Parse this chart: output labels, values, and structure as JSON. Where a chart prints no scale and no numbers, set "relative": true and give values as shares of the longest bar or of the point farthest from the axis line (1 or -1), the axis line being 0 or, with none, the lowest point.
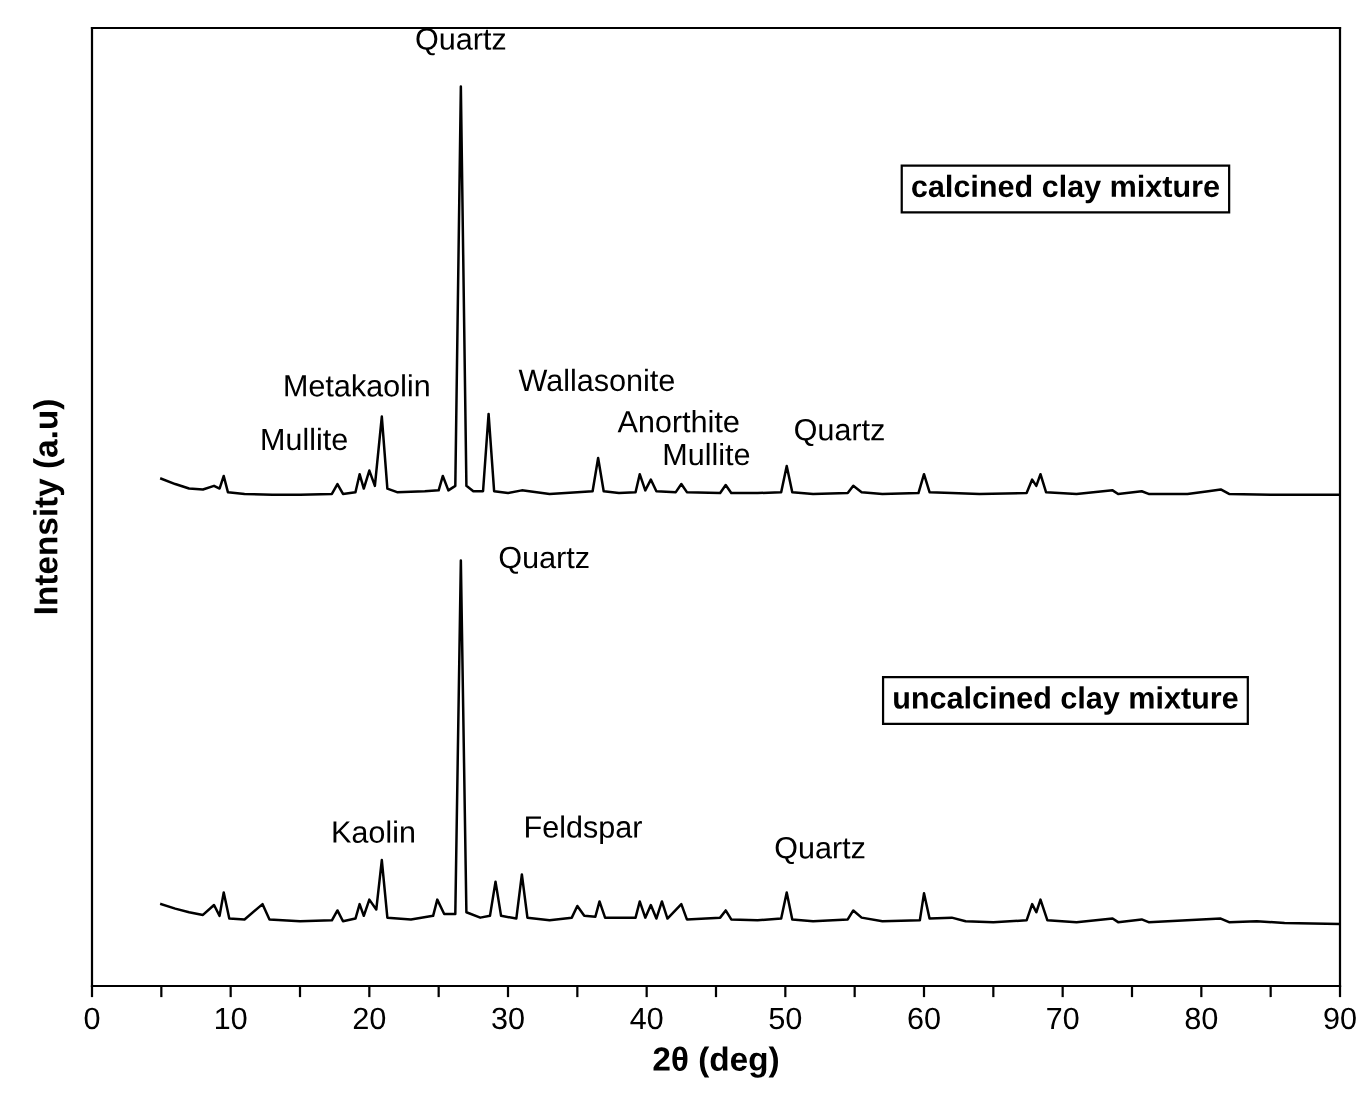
{
  "chart_data": {
    "type": "line",
    "relative": true,
    "xlabel": "2θ (deg)",
    "ylabel": "Intensity (a.u)",
    "xlim": [
      0,
      90
    ],
    "xticks": [
      0,
      {
        "value": 5,
        "label": null
      },
      10,
      {
        "value": 15,
        "label": null
      },
      20,
      {
        "value": 25,
        "label": null
      },
      30,
      {
        "value": 35,
        "label": null
      },
      40,
      {
        "value": 45,
        "label": null
      },
      50,
      {
        "value": 55,
        "label": null
      },
      60,
      {
        "value": 65,
        "label": null
      },
      70,
      {
        "value": 75,
        "label": null
      },
      80,
      {
        "value": 85,
        "label": null
      },
      90
    ],
    "grid": false,
    "legend": false,
    "marker": "none",
    "line_style": "solid",
    "series": [
      {
        "name": "calcined clay mixture",
        "color": "#000000",
        "x": [
          5,
          6,
          7,
          8,
          8.8,
          9.2,
          9.5,
          9.8,
          11,
          13,
          15,
          17.3,
          17.7,
          18.1,
          19.0,
          19.3,
          19.6,
          20.0,
          20.4,
          20.9,
          21.3,
          22,
          24,
          25.0,
          25.3,
          25.7,
          26.2,
          26.6,
          27.0,
          27.5,
          28.2,
          28.6,
          29.0,
          30,
          31,
          33,
          35.0,
          36.1,
          36.5,
          36.9,
          38,
          39.2,
          39.5,
          39.9,
          40.3,
          40.7,
          42.1,
          42.5,
          42.9,
          45.3,
          45.7,
          46.1,
          48,
          49.7,
          50.1,
          50.5,
          52,
          54.5,
          54.9,
          55.5,
          57,
          59.6,
          60.0,
          60.4,
          62,
          64,
          67.4,
          67.8,
          68.1,
          68.4,
          68.8,
          71,
          73.6,
          74,
          75.7,
          76.2,
          79,
          80.5,
          81.4,
          82,
          85,
          88,
          90
        ],
        "values": [
          0.564,
          0.558,
          0.553,
          0.552,
          0.556,
          0.553,
          0.567,
          0.549,
          0.547,
          0.546,
          0.546,
          0.547,
          0.558,
          0.547,
          0.549,
          0.569,
          0.553,
          0.573,
          0.556,
          0.633,
          0.553,
          0.549,
          0.55,
          0.551,
          0.567,
          0.551,
          0.556,
          1.0,
          0.556,
          0.55,
          0.55,
          0.636,
          0.55,
          0.548,
          0.551,
          0.547,
          0.549,
          0.55,
          0.587,
          0.55,
          0.548,
          0.549,
          0.569,
          0.551,
          0.563,
          0.55,
          0.549,
          0.558,
          0.549,
          0.548,
          0.557,
          0.548,
          0.548,
          0.549,
          0.578,
          0.549,
          0.547,
          0.548,
          0.556,
          0.549,
          0.547,
          0.548,
          0.569,
          0.549,
          0.548,
          0.547,
          0.548,
          0.563,
          0.556,
          0.569,
          0.549,
          0.547,
          0.551,
          0.547,
          0.55,
          0.547,
          0.547,
          0.55,
          0.552,
          0.547,
          0.546,
          0.546,
          0.546
        ]
      },
      {
        "name": "uncalcined clay mixture",
        "color": "#000000",
        "x": [
          5,
          6,
          7,
          8,
          8.8,
          9.2,
          9.5,
          9.9,
          11,
          12.3,
          12.8,
          15,
          17.3,
          17.7,
          18.1,
          19.0,
          19.3,
          19.6,
          20.0,
          20.5,
          20.9,
          21.3,
          23,
          24.6,
          24.9,
          25.4,
          26.2,
          26.6,
          27.0,
          28,
          28.7,
          29.1,
          29.5,
          30.6,
          31.0,
          31.4,
          33,
          34.6,
          35.0,
          35.5,
          36.3,
          36.6,
          37,
          39.2,
          39.5,
          39.9,
          40.3,
          40.7,
          41.1,
          41.5,
          42.5,
          42.9,
          45.3,
          45.7,
          46.1,
          48,
          49.7,
          50.1,
          50.5,
          52,
          54.5,
          54.9,
          55.5,
          57,
          59.7,
          60.0,
          60.4,
          62.0,
          63,
          65,
          67.4,
          67.8,
          68.1,
          68.4,
          68.9,
          71,
          73.6,
          74,
          75.7,
          76.2,
          80,
          81.4,
          82,
          84,
          86,
          90
        ],
        "values": [
          0.091,
          0.086,
          0.082,
          0.079,
          0.09,
          0.078,
          0.104,
          0.075,
          0.074,
          0.091,
          0.074,
          0.072,
          0.073,
          0.084,
          0.072,
          0.075,
          0.091,
          0.078,
          0.096,
          0.085,
          0.14,
          0.076,
          0.074,
          0.078,
          0.096,
          0.08,
          0.08,
          0.473,
          0.082,
          0.076,
          0.078,
          0.116,
          0.078,
          0.075,
          0.124,
          0.076,
          0.073,
          0.076,
          0.089,
          0.078,
          0.077,
          0.094,
          0.076,
          0.076,
          0.094,
          0.076,
          0.09,
          0.075,
          0.094,
          0.075,
          0.091,
          0.074,
          0.076,
          0.084,
          0.074,
          0.073,
          0.075,
          0.104,
          0.074,
          0.072,
          0.074,
          0.084,
          0.076,
          0.072,
          0.073,
          0.103,
          0.075,
          0.076,
          0.072,
          0.071,
          0.073,
          0.091,
          0.082,
          0.096,
          0.073,
          0.071,
          0.075,
          0.071,
          0.074,
          0.071,
          0.074,
          0.075,
          0.071,
          0.072,
          0.07,
          0.069
        ]
      }
    ],
    "annotations": [
      {
        "text": "Quartz",
        "x": 26.6,
        "y": 1.0
      },
      {
        "text": "Metakaolin",
        "x": 20.9,
        "y": 0.633
      },
      {
        "text": "Mullite",
        "x": 17.7,
        "y": 0.558
      },
      {
        "text": "Wallasonite",
        "x": 28.6,
        "y": 0.636
      },
      {
        "text": "Anorthite",
        "x": 36.5,
        "y": 0.587
      },
      {
        "text": "Mullite",
        "x": 39.5,
        "y": 0.569
      },
      {
        "text": "Quartz",
        "x": 50.1,
        "y": 0.578
      },
      {
        "text": "Quartz",
        "x": 26.6,
        "y": 0.473
      },
      {
        "text": "Kaolin",
        "x": 20.9,
        "y": 0.14
      },
      {
        "text": "Feldspar",
        "x": 31.0,
        "y": 0.124
      },
      {
        "text": "Quartz",
        "x": 50.1,
        "y": 0.104
      }
    ]
  }
}
